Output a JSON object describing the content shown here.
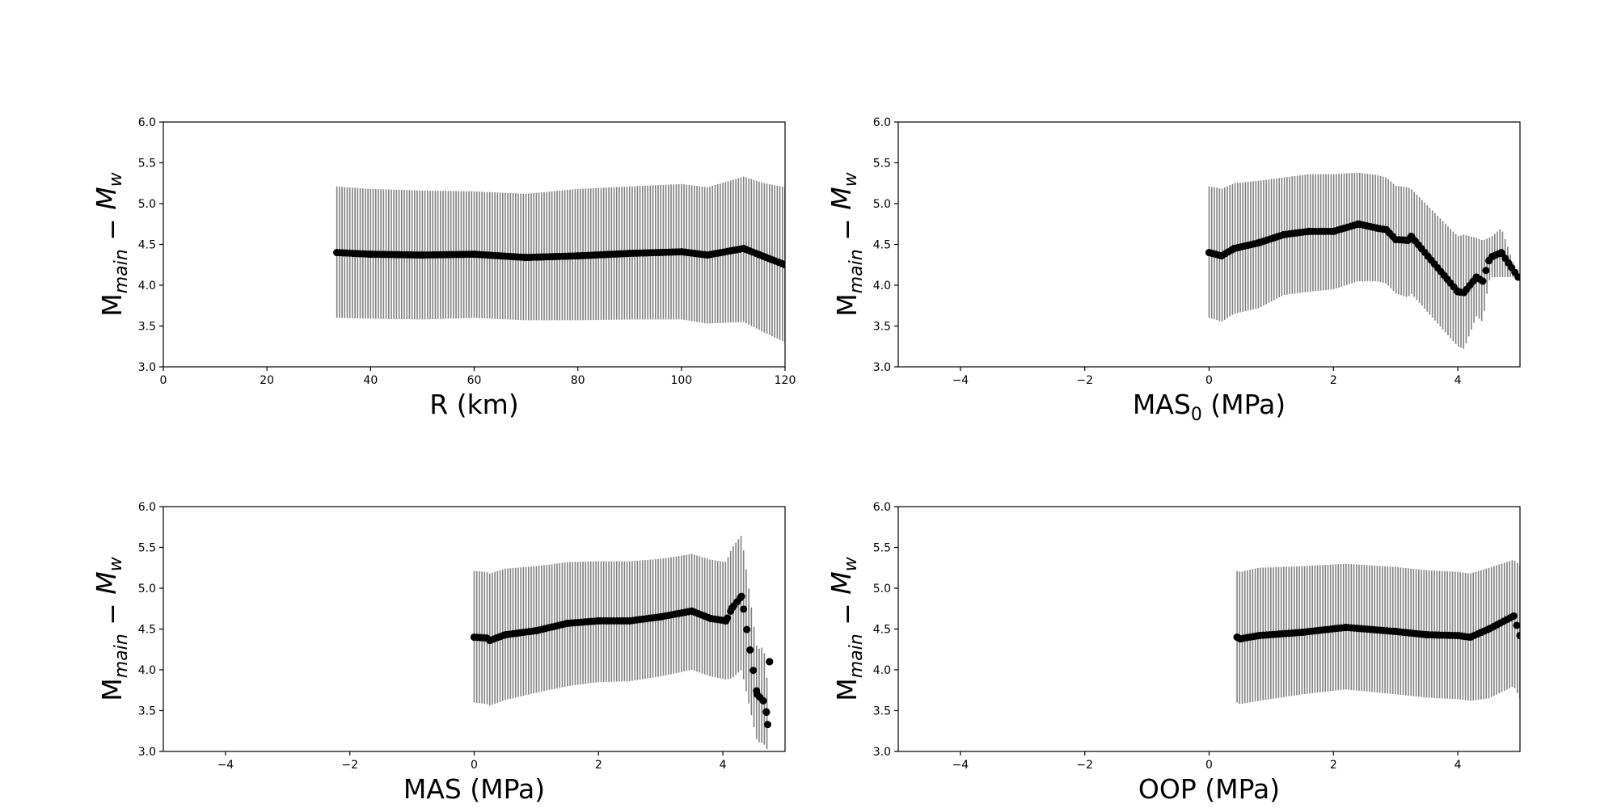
{
  "figure": {
    "background": "#ffffff"
  },
  "chart_data": [
    {
      "type": "scatter",
      "xlabel": "R (km)",
      "ylabel": "M_main - M_w",
      "xlim": [
        0,
        120
      ],
      "ylim": [
        3.0,
        6.0
      ],
      "xticks": [
        "0",
        "20",
        "40",
        "60",
        "80",
        "100",
        "120"
      ],
      "yticks": [
        "3.0",
        "3.5",
        "4.0",
        "4.5",
        "5.0",
        "5.5",
        "6.0"
      ],
      "marker_color": "#000000",
      "errorbar_color": "#808080",
      "points": [
        {
          "x": 33.5,
          "y": 4.4,
          "lo": 3.6,
          "hi": 5.21
        },
        {
          "x": 40,
          "y": 4.38,
          "lo": 3.59,
          "hi": 5.18
        },
        {
          "x": 50,
          "y": 4.37,
          "lo": 3.58,
          "hi": 5.16
        },
        {
          "x": 60,
          "y": 4.38,
          "lo": 3.6,
          "hi": 5.15
        },
        {
          "x": 70,
          "y": 4.34,
          "lo": 3.57,
          "hi": 5.12
        },
        {
          "x": 80,
          "y": 4.36,
          "lo": 3.57,
          "hi": 5.18
        },
        {
          "x": 90,
          "y": 4.39,
          "lo": 3.58,
          "hi": 5.21
        },
        {
          "x": 100,
          "y": 4.41,
          "lo": 3.58,
          "hi": 5.24
        },
        {
          "x": 105,
          "y": 4.37,
          "lo": 3.53,
          "hi": 5.2
        },
        {
          "x": 112,
          "y": 4.45,
          "lo": 3.55,
          "hi": 5.33
        },
        {
          "x": 116,
          "y": 4.35,
          "lo": 3.42,
          "hi": 5.25
        },
        {
          "x": 120,
          "y": 4.25,
          "lo": 3.3,
          "hi": 5.2
        }
      ]
    },
    {
      "type": "scatter",
      "xlabel": "MAS",
      "xlabel_sub": "0",
      "xlabel_unit": " (MPa)",
      "ylabel": "M_main - M_w",
      "xlim": [
        -5,
        5
      ],
      "ylim": [
        3.0,
        6.0
      ],
      "xticks": [
        "−4",
        "−2",
        "0",
        "2",
        "4"
      ],
      "yticks": [
        "3.0",
        "3.5",
        "4.0",
        "4.5",
        "5.0",
        "5.5",
        "6.0"
      ],
      "marker_color": "#000000",
      "errorbar_color": "#808080",
      "points": [
        {
          "x": 0.0,
          "y": 4.4,
          "lo": 3.6,
          "hi": 5.21
        },
        {
          "x": 0.1,
          "y": 4.38,
          "lo": 3.58,
          "hi": 5.2
        },
        {
          "x": 0.2,
          "y": 4.36,
          "lo": 3.55,
          "hi": 5.18
        },
        {
          "x": 0.4,
          "y": 4.45,
          "lo": 3.65,
          "hi": 5.25
        },
        {
          "x": 0.8,
          "y": 4.52,
          "lo": 3.72,
          "hi": 5.28
        },
        {
          "x": 1.2,
          "y": 4.62,
          "lo": 3.88,
          "hi": 5.32
        },
        {
          "x": 1.6,
          "y": 4.66,
          "lo": 3.92,
          "hi": 5.36
        },
        {
          "x": 2.0,
          "y": 4.66,
          "lo": 3.95,
          "hi": 5.36
        },
        {
          "x": 2.4,
          "y": 4.75,
          "lo": 4.05,
          "hi": 5.38
        },
        {
          "x": 2.7,
          "y": 4.7,
          "lo": 4.05,
          "hi": 5.35
        },
        {
          "x": 2.85,
          "y": 4.68,
          "lo": 4.02,
          "hi": 5.32
        },
        {
          "x": 3.0,
          "y": 4.56,
          "lo": 3.9,
          "hi": 5.22
        },
        {
          "x": 3.2,
          "y": 4.55,
          "lo": 3.85,
          "hi": 5.2
        },
        {
          "x": 3.25,
          "y": 4.6,
          "lo": 3.9,
          "hi": 5.18
        },
        {
          "x": 4.0,
          "y": 3.92,
          "lo": 3.25,
          "hi": 4.6
        },
        {
          "x": 4.1,
          "y": 3.91,
          "lo": 3.22,
          "hi": 4.62
        },
        {
          "x": 4.3,
          "y": 4.1,
          "lo": 3.62,
          "hi": 4.58
        },
        {
          "x": 4.4,
          "y": 4.05,
          "lo": 3.55,
          "hi": 4.55
        },
        {
          "x": 4.5,
          "y": 4.3,
          "lo": 4.05,
          "hi": 4.58
        },
        {
          "x": 4.55,
          "y": 4.35,
          "lo": 4.1,
          "hi": 4.6
        },
        {
          "x": 4.7,
          "y": 4.4,
          "lo": 4.1,
          "hi": 4.7
        },
        {
          "x": 4.97,
          "y": 4.1,
          "lo": 4.1,
          "hi": 4.1
        }
      ]
    },
    {
      "type": "scatter",
      "xlabel": "MAS (MPa)",
      "ylabel": "M_main - M_w",
      "xlim": [
        -5,
        5
      ],
      "ylim": [
        3.0,
        6.0
      ],
      "xticks": [
        "−4",
        "−2",
        "0",
        "2",
        "4"
      ],
      "yticks": [
        "3.0",
        "3.5",
        "4.0",
        "4.5",
        "5.0",
        "5.5",
        "6.0"
      ],
      "marker_color": "#000000",
      "errorbar_color": "#808080",
      "points": [
        {
          "x": 0.0,
          "y": 4.4,
          "lo": 3.6,
          "hi": 5.21
        },
        {
          "x": 0.2,
          "y": 4.39,
          "lo": 3.58,
          "hi": 5.2
        },
        {
          "x": 0.25,
          "y": 4.36,
          "lo": 3.56,
          "hi": 5.18
        },
        {
          "x": 0.5,
          "y": 4.43,
          "lo": 3.63,
          "hi": 5.24
        },
        {
          "x": 1.0,
          "y": 4.48,
          "lo": 3.72,
          "hi": 5.27
        },
        {
          "x": 1.5,
          "y": 4.57,
          "lo": 3.8,
          "hi": 5.32
        },
        {
          "x": 2.0,
          "y": 4.6,
          "lo": 3.85,
          "hi": 5.33
        },
        {
          "x": 2.5,
          "y": 4.6,
          "lo": 3.86,
          "hi": 5.33
        },
        {
          "x": 3.0,
          "y": 4.65,
          "lo": 3.92,
          "hi": 5.36
        },
        {
          "x": 3.5,
          "y": 4.72,
          "lo": 4.0,
          "hi": 5.42
        },
        {
          "x": 3.8,
          "y": 4.63,
          "lo": 3.92,
          "hi": 5.35
        },
        {
          "x": 4.05,
          "y": 4.6,
          "lo": 3.88,
          "hi": 5.32
        },
        {
          "x": 4.15,
          "y": 4.76,
          "lo": 3.9,
          "hi": 5.5
        },
        {
          "x": 4.3,
          "y": 4.9,
          "lo": 4.0,
          "hi": 5.65
        },
        {
          "x": 4.55,
          "y": 3.7,
          "lo": 3.12,
          "hi": 4.25
        },
        {
          "x": 4.65,
          "y": 3.62,
          "lo": 3.1,
          "hi": 4.28
        },
        {
          "x": 4.7,
          "y": 3.48,
          "lo": 3.05,
          "hi": 4.05
        },
        {
          "x": 4.72,
          "y": 3.33,
          "lo": 3.0,
          "hi": 3.7
        },
        {
          "x": 4.75,
          "y": 4.1,
          "lo": 4.1,
          "hi": 4.1
        }
      ]
    },
    {
      "type": "scatter",
      "xlabel": "OOP (MPa)",
      "ylabel": "M_main - M_w",
      "xlim": [
        -5,
        5
      ],
      "ylim": [
        3.0,
        6.0
      ],
      "xticks": [
        "−4",
        "−2",
        "0",
        "2",
        "4"
      ],
      "yticks": [
        "3.0",
        "3.5",
        "4.0",
        "4.5",
        "5.0",
        "5.5",
        "6.0"
      ],
      "marker_color": "#000000",
      "errorbar_color": "#808080",
      "points": [
        {
          "x": 0.45,
          "y": 4.4,
          "lo": 3.6,
          "hi": 5.21
        },
        {
          "x": 0.5,
          "y": 4.38,
          "lo": 3.58,
          "hi": 5.2
        },
        {
          "x": 0.8,
          "y": 4.42,
          "lo": 3.62,
          "hi": 5.25
        },
        {
          "x": 1.5,
          "y": 4.46,
          "lo": 3.7,
          "hi": 5.27
        },
        {
          "x": 2.2,
          "y": 4.52,
          "lo": 3.76,
          "hi": 5.3
        },
        {
          "x": 3.0,
          "y": 4.47,
          "lo": 3.7,
          "hi": 5.26
        },
        {
          "x": 3.5,
          "y": 4.43,
          "lo": 3.66,
          "hi": 5.22
        },
        {
          "x": 4.0,
          "y": 4.42,
          "lo": 3.64,
          "hi": 5.2
        },
        {
          "x": 4.2,
          "y": 4.4,
          "lo": 3.62,
          "hi": 5.18
        },
        {
          "x": 4.5,
          "y": 4.5,
          "lo": 3.65,
          "hi": 5.25
        },
        {
          "x": 4.9,
          "y": 4.66,
          "lo": 3.8,
          "hi": 5.35
        },
        {
          "x": 5.0,
          "y": 4.42,
          "lo": 3.65,
          "hi": 5.28
        }
      ]
    }
  ]
}
